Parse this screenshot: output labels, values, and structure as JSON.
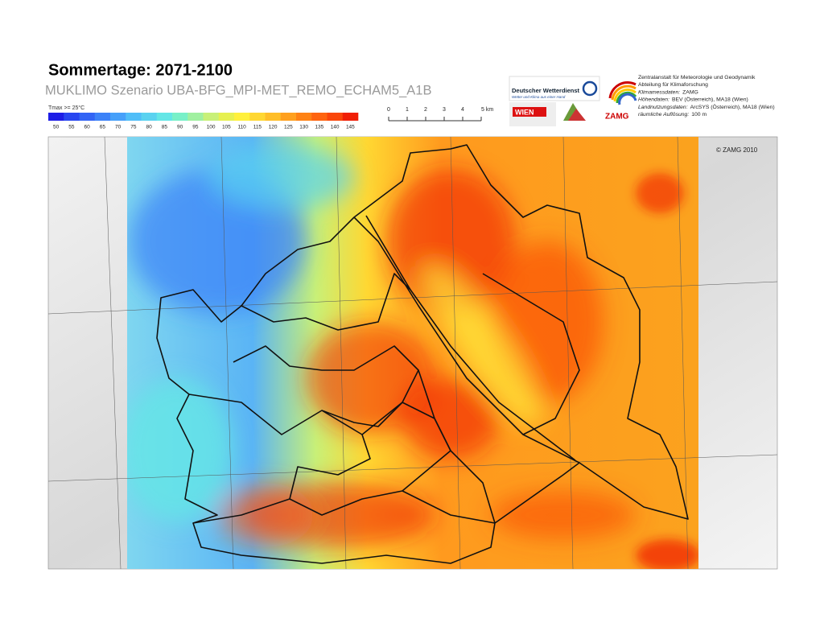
{
  "header": {
    "title": "Sommertage: 2071-2100",
    "subtitle": "MUKLIMO Szenario UBA-BFG_MPI-MET_REMO_ECHAM5_A1B"
  },
  "legend": {
    "title": "Tmax >= 25°C",
    "ticks": [
      50,
      55,
      60,
      65,
      70,
      75,
      80,
      85,
      90,
      95,
      100,
      105,
      110,
      115,
      120,
      125,
      130,
      135,
      140,
      145
    ],
    "colors": [
      "#1e1ee6",
      "#2846f0",
      "#3264f5",
      "#3c82f8",
      "#46a0fa",
      "#50bef8",
      "#5ad2f0",
      "#64e6e6",
      "#78f0c8",
      "#a0f0a0",
      "#c8f078",
      "#e6f050",
      "#fff03c",
      "#ffd732",
      "#ffbe28",
      "#ffa01e",
      "#ff8214",
      "#ff640f",
      "#fa460a",
      "#f01e05"
    ]
  },
  "scale_bar": {
    "labels": [
      "0",
      "1",
      "2",
      "3",
      "4",
      "5 km"
    ]
  },
  "logos": {
    "dwd_name": "Deutscher Wetterdienst",
    "dwd_slogan": "Wetter und Klima aus einer Hand",
    "wien": "WIEN",
    "zamg": "ZAMG"
  },
  "credits": {
    "lines": [
      {
        "text": "Zentralanstalt für Meteorologie und Geodynamik"
      },
      {
        "text": "Abteilung für Klimaforschung"
      },
      {
        "label": "Klimamessdaten:",
        "text": "ZAMG"
      },
      {
        "label": "Höhendaten:",
        "text": "BEV (Österreich), MA18 (Wien)"
      },
      {
        "label": "Landnutzungsdaten:",
        "text": "ArcSYS (Österreich), MA18 (Wien)"
      },
      {
        "label": "räumliche Auflösung:",
        "text": "100 m"
      }
    ]
  },
  "map": {
    "copyright": "© ZAMG 2010"
  }
}
